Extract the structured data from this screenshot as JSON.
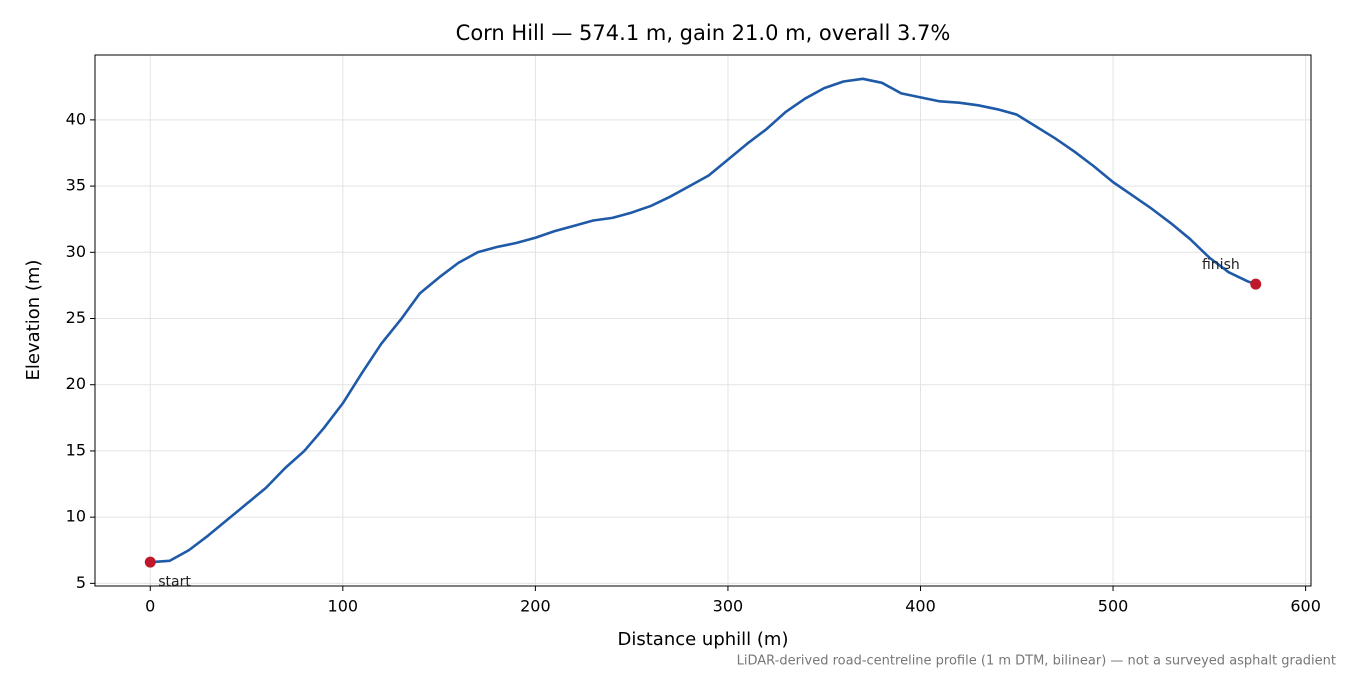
{
  "chart_data": {
    "type": "line",
    "title": "Corn Hill — 574.1 m, gain 21.0 m, overall 3.7%",
    "x_label": "Distance uphill (m)",
    "y_label": "Elevation (m)",
    "note": "LiDAR-derived road-centreline profile (1 m DTM, bilinear) — not a surveyed asphalt gradient",
    "xlim": [
      -28.7,
      602.8
    ],
    "ylim": [
      4.8,
      44.9
    ],
    "xticks": [
      0,
      100,
      200,
      300,
      400,
      500,
      600
    ],
    "yticks": [
      5,
      10,
      15,
      20,
      25,
      30,
      35,
      40
    ],
    "grid": true,
    "x": [
      0,
      10,
      20,
      30,
      40,
      50,
      60,
      70,
      80,
      90,
      100,
      110,
      120,
      130,
      140,
      150,
      160,
      170,
      180,
      190,
      200,
      210,
      220,
      230,
      240,
      250,
      260,
      270,
      280,
      290,
      300,
      310,
      320,
      330,
      340,
      350,
      360,
      370,
      380,
      390,
      400,
      410,
      420,
      430,
      440,
      450,
      460,
      470,
      480,
      490,
      500,
      510,
      520,
      530,
      540,
      550,
      560,
      570,
      574.1
    ],
    "series": [
      {
        "name": "Elevation",
        "color": "#1f5aa8",
        "values": [
          6.6,
          6.7,
          7.5,
          8.6,
          9.8,
          11.0,
          12.2,
          13.7,
          15.0,
          16.7,
          18.6,
          20.9,
          23.1,
          24.9,
          26.9,
          28.1,
          29.2,
          30.0,
          30.4,
          30.7,
          31.1,
          31.6,
          32.0,
          32.4,
          32.6,
          33.0,
          33.5,
          34.2,
          35.0,
          35.8,
          37.0,
          38.2,
          39.3,
          40.6,
          41.6,
          42.4,
          42.9,
          43.1,
          42.8,
          42.0,
          41.7,
          41.4,
          41.3,
          41.1,
          40.8,
          40.4,
          39.5,
          38.6,
          37.6,
          36.5,
          35.3,
          34.3,
          33.3,
          32.2,
          31.0,
          29.6,
          28.5,
          27.8,
          27.6
        ]
      }
    ],
    "markers": [
      {
        "label": "start",
        "x": 0,
        "y": 6.6,
        "color": "#c0182a"
      },
      {
        "label": "finish",
        "x": 574.1,
        "y": 27.6,
        "color": "#c0182a"
      }
    ]
  }
}
